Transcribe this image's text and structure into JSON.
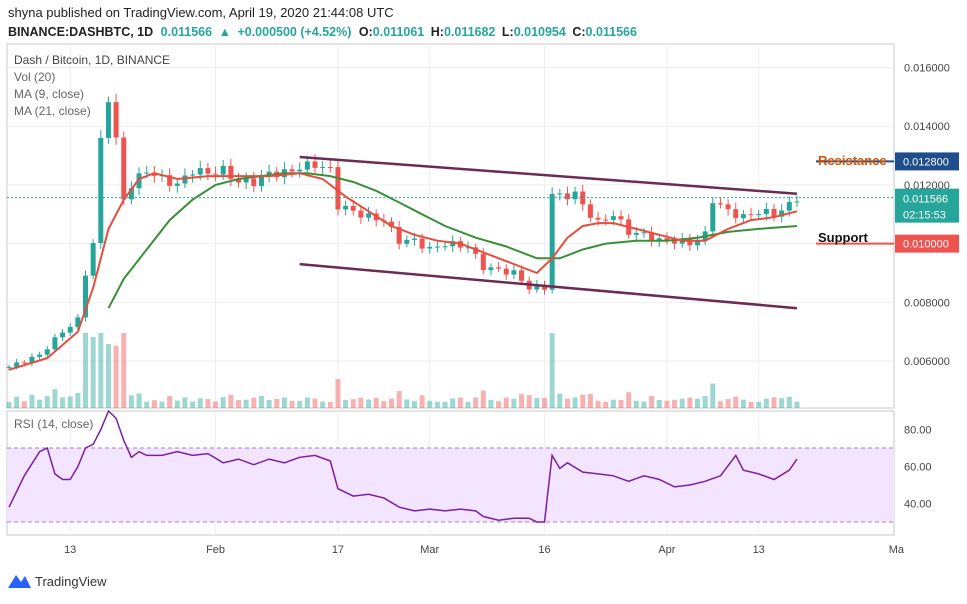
{
  "header": {
    "publisher": "shyna published on TradingView.com, April 19, 2020 21:44:08 UTC",
    "symbol": "BINANCE:DASHBTC, 1D",
    "last": "0.011566",
    "change_arrow": "▲",
    "change": "+0.000500 (+4.52%)",
    "o_label": "O:",
    "o_value": "0.011061",
    "h_label": "H:",
    "h_value": "0.011682",
    "l_label": "L:",
    "l_value": "0.010954",
    "c_label": "C:",
    "c_value": "0.011566"
  },
  "legend": {
    "title": "Dash / Bitcoin, 1D, BINANCE",
    "vol": "Vol (20)",
    "ma9": "MA (9, close)",
    "ma21": "MA (21, close)",
    "rsi": "RSI (14, close)"
  },
  "annotations": {
    "resistance": "Resistance",
    "support": "Support",
    "resistance_color": "#d35400",
    "support_color": "#111111"
  },
  "price_tags": {
    "resistance": "0.012800",
    "current": "0.011566",
    "countdown": "02:15:53",
    "support": "0.010000"
  },
  "branding": {
    "name": "TradingView"
  },
  "colors": {
    "up": "#26a69a",
    "down": "#ef5350",
    "ma9": "#e74c3c",
    "ma21": "#3a8f3a",
    "trend": "#6d2a52",
    "rsi": "#7b1fa2",
    "rsi_band": "#f3e5ff",
    "resistance_tag": "#1e4e8c",
    "support_tag": "#ef5350",
    "current_tag": "#26a69a"
  },
  "chart_data": {
    "type": "candlestick",
    "x_ticks": [
      {
        "label": "13",
        "index": 8
      },
      {
        "label": "Feb",
        "index": 27
      },
      {
        "label": "17",
        "index": 43
      },
      {
        "label": "Mar",
        "index": 55
      },
      {
        "label": "16",
        "index": 70
      },
      {
        "label": "Apr",
        "index": 86
      },
      {
        "label": "13",
        "index": 98
      },
      {
        "label": "Ma",
        "index": 116
      }
    ],
    "price_ticks": [
      "0.016000",
      "0.014000",
      "0.012000",
      "0.010000",
      "0.008000",
      "0.006000"
    ],
    "price_tick_values": [
      0.016,
      0.014,
      0.012,
      0.01,
      0.008,
      0.006
    ],
    "price_range": [
      0.0044,
      0.0168
    ],
    "rsi_ticks": [
      "80.00",
      "60.00",
      "40.00"
    ],
    "rsi_tick_values": [
      80,
      60,
      40
    ],
    "rsi_range": [
      23,
      90
    ],
    "rsi_bands": [
      70,
      30
    ],
    "resistance_level": 0.0128,
    "support_level": 0.01,
    "current_price": 0.011566,
    "trend_upper": [
      [
        38,
        0.01295
      ],
      [
        103,
        0.0117
      ]
    ],
    "trend_lower": [
      [
        38,
        0.0093
      ],
      [
        103,
        0.0078
      ]
    ],
    "close_points": [
      [
        0,
        0.0058
      ],
      [
        4,
        0.0062
      ],
      [
        7,
        0.007
      ],
      [
        9,
        0.0074
      ],
      [
        10,
        0.009
      ],
      [
        11,
        0.01
      ],
      [
        12,
        0.0135
      ],
      [
        13,
        0.015
      ],
      [
        14,
        0.0135
      ],
      [
        15,
        0.0115
      ],
      [
        16,
        0.012
      ],
      [
        18,
        0.0125
      ],
      [
        20,
        0.0122
      ],
      [
        22,
        0.012
      ],
      [
        24,
        0.0125
      ],
      [
        26,
        0.0124
      ],
      [
        28,
        0.0125
      ],
      [
        30,
        0.0121
      ],
      [
        32,
        0.0121
      ],
      [
        34,
        0.0124
      ],
      [
        36,
        0.0124
      ],
      [
        38,
        0.0126
      ],
      [
        40,
        0.0127
      ],
      [
        42,
        0.0125
      ],
      [
        43,
        0.0113
      ],
      [
        45,
        0.0111
      ],
      [
        47,
        0.0109
      ],
      [
        49,
        0.0108
      ],
      [
        51,
        0.0101
      ],
      [
        53,
        0.0101
      ],
      [
        55,
        0.0098
      ],
      [
        57,
        0.01
      ],
      [
        60,
        0.0099
      ],
      [
        62,
        0.0092
      ],
      [
        64,
        0.0091
      ],
      [
        66,
        0.009
      ],
      [
        68,
        0.0085
      ],
      [
        70,
        0.0085
      ],
      [
        71,
        0.0117
      ],
      [
        72,
        0.0116
      ],
      [
        74,
        0.0117
      ],
      [
        75,
        0.0113
      ],
      [
        77,
        0.0107
      ],
      [
        79,
        0.011
      ],
      [
        81,
        0.0104
      ],
      [
        83,
        0.0103
      ],
      [
        85,
        0.0101
      ],
      [
        87,
        0.0101
      ],
      [
        89,
        0.01
      ],
      [
        91,
        0.0103
      ],
      [
        92,
        0.0115
      ],
      [
        94,
        0.0111
      ],
      [
        96,
        0.0109
      ],
      [
        98,
        0.0111
      ],
      [
        100,
        0.011
      ],
      [
        102,
        0.0113
      ],
      [
        103,
        0.01157
      ]
    ],
    "ma9_points": [
      [
        0,
        0.0057
      ],
      [
        5,
        0.0061
      ],
      [
        9,
        0.007
      ],
      [
        11,
        0.0085
      ],
      [
        13,
        0.0105
      ],
      [
        15,
        0.0115
      ],
      [
        17,
        0.0122
      ],
      [
        19,
        0.0124
      ],
      [
        22,
        0.0122
      ],
      [
        26,
        0.0123
      ],
      [
        30,
        0.0123
      ],
      [
        34,
        0.0123
      ],
      [
        38,
        0.0124
      ],
      [
        41,
        0.0122
      ],
      [
        44,
        0.0116
      ],
      [
        47,
        0.0111
      ],
      [
        50,
        0.0106
      ],
      [
        53,
        0.0103
      ],
      [
        56,
        0.0101
      ],
      [
        59,
        0.01
      ],
      [
        62,
        0.0097
      ],
      [
        65,
        0.0094
      ],
      [
        69,
        0.009
      ],
      [
        71,
        0.0095
      ],
      [
        73,
        0.0102
      ],
      [
        75,
        0.0106
      ],
      [
        77,
        0.0107
      ],
      [
        79,
        0.0107
      ],
      [
        82,
        0.0105
      ],
      [
        85,
        0.0103
      ],
      [
        88,
        0.0101
      ],
      [
        91,
        0.0101
      ],
      [
        94,
        0.0105
      ],
      [
        97,
        0.0108
      ],
      [
        100,
        0.0109
      ],
      [
        103,
        0.0111
      ]
    ],
    "ma21_points": [
      [
        13,
        0.0078
      ],
      [
        15,
        0.0088
      ],
      [
        18,
        0.0098
      ],
      [
        21,
        0.0108
      ],
      [
        24,
        0.0115
      ],
      [
        27,
        0.012
      ],
      [
        30,
        0.0122
      ],
      [
        33,
        0.0123
      ],
      [
        36,
        0.0124
      ],
      [
        39,
        0.0124
      ],
      [
        42,
        0.0123
      ],
      [
        45,
        0.0121
      ],
      [
        48,
        0.0118
      ],
      [
        51,
        0.0114
      ],
      [
        54,
        0.011
      ],
      [
        57,
        0.0106
      ],
      [
        61,
        0.0102
      ],
      [
        65,
        0.0099
      ],
      [
        69,
        0.0095
      ],
      [
        72,
        0.0095
      ],
      [
        75,
        0.0098
      ],
      [
        78,
        0.01
      ],
      [
        82,
        0.0101
      ],
      [
        86,
        0.0101
      ],
      [
        90,
        0.0102
      ],
      [
        94,
        0.0104
      ],
      [
        98,
        0.0105
      ],
      [
        103,
        0.0106
      ]
    ],
    "rsi_points": [
      [
        0,
        38
      ],
      [
        2,
        55
      ],
      [
        4,
        68
      ],
      [
        5,
        70
      ],
      [
        6,
        56
      ],
      [
        7,
        53
      ],
      [
        8,
        53
      ],
      [
        9,
        60
      ],
      [
        10,
        70
      ],
      [
        11,
        72
      ],
      [
        12,
        80
      ],
      [
        13,
        90
      ],
      [
        14,
        86
      ],
      [
        15,
        74
      ],
      [
        16,
        65
      ],
      [
        17,
        68
      ],
      [
        18,
        66
      ],
      [
        20,
        66
      ],
      [
        22,
        68
      ],
      [
        24,
        66
      ],
      [
        26,
        67
      ],
      [
        28,
        62
      ],
      [
        30,
        64
      ],
      [
        32,
        61
      ],
      [
        34,
        64
      ],
      [
        36,
        62
      ],
      [
        38,
        65
      ],
      [
        40,
        66
      ],
      [
        42,
        63
      ],
      [
        43,
        48
      ],
      [
        45,
        44
      ],
      [
        47,
        45
      ],
      [
        49,
        43
      ],
      [
        51,
        38
      ],
      [
        53,
        36
      ],
      [
        55,
        37
      ],
      [
        57,
        36
      ],
      [
        59,
        37
      ],
      [
        61,
        36
      ],
      [
        62,
        33
      ],
      [
        64,
        31
      ],
      [
        66,
        32
      ],
      [
        68,
        32
      ],
      [
        69,
        30
      ],
      [
        70,
        30
      ],
      [
        71,
        66
      ],
      [
        72,
        59
      ],
      [
        73,
        62
      ],
      [
        75,
        57
      ],
      [
        77,
        56
      ],
      [
        79,
        55
      ],
      [
        81,
        52
      ],
      [
        83,
        55
      ],
      [
        85,
        53
      ],
      [
        87,
        49
      ],
      [
        89,
        50
      ],
      [
        91,
        52
      ],
      [
        93,
        55
      ],
      [
        95,
        66
      ],
      [
        96,
        58
      ],
      [
        98,
        56
      ],
      [
        100,
        53
      ],
      [
        102,
        58
      ],
      [
        103,
        64
      ]
    ]
  }
}
